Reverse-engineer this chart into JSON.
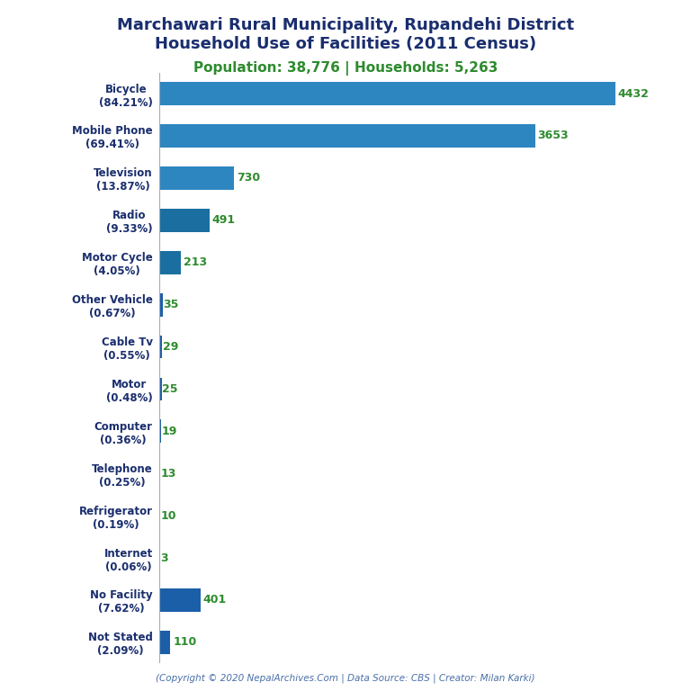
{
  "title_line1": "Marchawari Rural Municipality, Rupandehi District",
  "title_line2": "Household Use of Facilities (2011 Census)",
  "subtitle": "Population: 38,776 | Households: 5,263",
  "footer": "(Copyright © 2020 NepalArchives.Com | Data Source: CBS | Creator: Milan Karki)",
  "categories": [
    "Bicycle\n(84.21%)",
    "Mobile Phone\n(69.41%)",
    "Television\n(13.87%)",
    "Radio\n(9.33%)",
    "Motor Cycle\n(4.05%)",
    "Other Vehicle\n(0.67%)",
    "Cable Tv\n(0.55%)",
    "Motor\n(0.48%)",
    "Computer\n(0.36%)",
    "Telephone\n(0.25%)",
    "Refrigerator\n(0.19%)",
    "Internet\n(0.06%)",
    "No Facility\n(7.62%)",
    "Not Stated\n(2.09%)"
  ],
  "values": [
    4432,
    3653,
    730,
    491,
    213,
    35,
    29,
    25,
    19,
    13,
    10,
    3,
    401,
    110
  ],
  "bar_colors": [
    "#2e86c1",
    "#2e86c1",
    "#2e86c1",
    "#1a6fa0",
    "#1a6fa0",
    "#1a5fa8",
    "#1a5fa8",
    "#1a5fa8",
    "#1a5fa8",
    "#1a5fa8",
    "#1a5fa8",
    "#1a5fa8",
    "#1a5fa8",
    "#1a5fa8"
  ],
  "title_color": "#1a2e6e",
  "subtitle_color": "#2e8b2e",
  "label_color": "#1a2e6e",
  "value_color": "#2e8b2e",
  "footer_color": "#4a6fa8",
  "background_color": "#ffffff",
  "xlim": [
    0,
    4900
  ]
}
